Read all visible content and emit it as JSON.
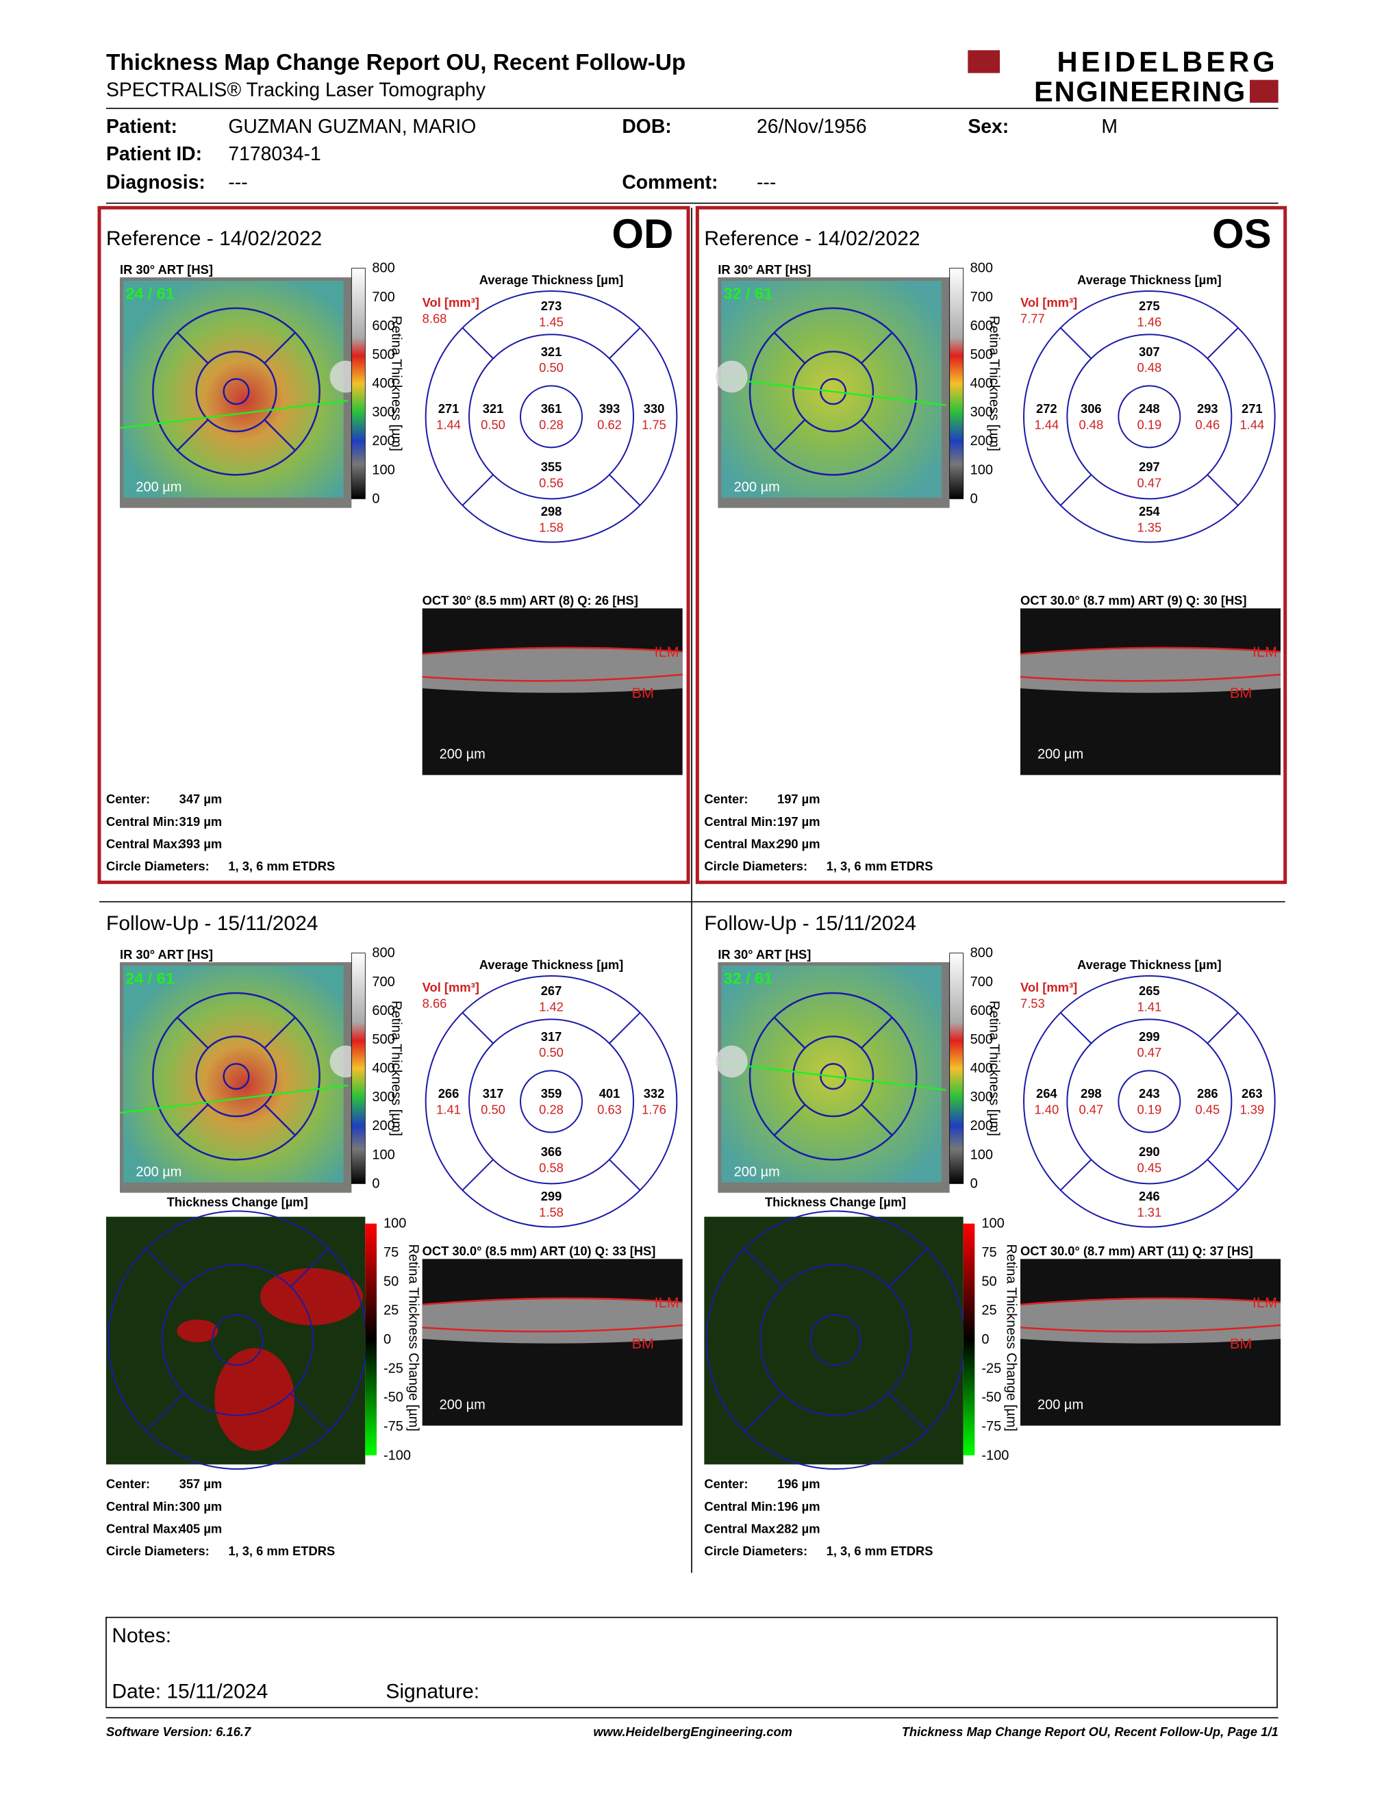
{
  "header": {
    "title": "Thickness Map Change Report OU, Recent Follow-Up",
    "subtitle": "SPECTRALIS® Tracking Laser Tomography",
    "logo": [
      "HEIDELBERG",
      "ENGINEERING"
    ]
  },
  "patient": {
    "patient_label": "Patient:",
    "patient": "GUZMAN GUZMAN, MARIO",
    "dob_label": "DOB:",
    "dob": "26/Nov/1956",
    "sex_label": "Sex:",
    "sex": "M",
    "id_label": "Patient ID:",
    "id": "7178034-1",
    "diagnosis_label": "Diagnosis:",
    "diagnosis": "---",
    "comment_label": "Comment:",
    "comment": "---"
  },
  "panels": [
    {
      "heading": "Reference - 14/02/2022",
      "eye": "OD",
      "ir_label": "IR 30° ART [HS]",
      "overlay": "24 / 61",
      "scale": "200 µm",
      "colorbar": {
        "ticks": [
          "800",
          "700",
          "600",
          "500",
          "400",
          "300",
          "200",
          "100",
          "0"
        ],
        "label": "Retina Thickness [µm]"
      },
      "etdrs": {
        "title": "Average Thickness [µm]",
        "vol_label": "Vol [mm³]",
        "vol": "8.68",
        "sectors": [
          {
            "thickness": "273",
            "volume": "1.45"
          },
          {
            "thickness": "321",
            "volume": "0.50"
          },
          {
            "thickness": "271",
            "volume": "1.44"
          },
          {
            "thickness": "321",
            "volume": "0.50"
          },
          {
            "thickness": "361",
            "volume": "0.28"
          },
          {
            "thickness": "393",
            "volume": "0.62"
          },
          {
            "thickness": "330",
            "volume": "1.75"
          },
          {
            "thickness": "355",
            "volume": "0.56"
          },
          {
            "thickness": "298",
            "volume": "1.58"
          }
        ]
      },
      "oct": {
        "label": "OCT 30° (8.5 mm) ART (8) Q: 26 [HS]",
        "ilm": "ILM",
        "bm": "BM",
        "scale": "200 µm"
      },
      "stats": [
        {
          "label": "Center:",
          "value": "347 µm"
        },
        {
          "label": "Central Min:",
          "value": "319 µm"
        },
        {
          "label": "Central Max:",
          "value": "393 µm"
        },
        {
          "label": "Circle Diameters:",
          "value": "1, 3, 6 mm ETDRS"
        }
      ]
    },
    {
      "heading": "Reference - 14/02/2022",
      "eye": "OS",
      "ir_label": "IR 30° ART [HS]",
      "overlay": "32 / 61",
      "scale": "200 µm",
      "colorbar": {
        "ticks": [
          "800",
          "700",
          "600",
          "500",
          "400",
          "300",
          "200",
          "100",
          "0"
        ],
        "label": "Retina Thickness [µm]"
      },
      "etdrs": {
        "title": "Average Thickness [µm]",
        "vol_label": "Vol [mm³]",
        "vol": "7.77",
        "sectors": [
          {
            "thickness": "275",
            "volume": "1.46"
          },
          {
            "thickness": "307",
            "volume": "0.48"
          },
          {
            "thickness": "272",
            "volume": "1.44"
          },
          {
            "thickness": "306",
            "volume": "0.48"
          },
          {
            "thickness": "248",
            "volume": "0.19"
          },
          {
            "thickness": "293",
            "volume": "0.46"
          },
          {
            "thickness": "271",
            "volume": "1.44"
          },
          {
            "thickness": "297",
            "volume": "0.47"
          },
          {
            "thickness": "254",
            "volume": "1.35"
          }
        ]
      },
      "oct": {
        "label": "OCT 30.0° (8.7 mm) ART (9) Q: 30 [HS]",
        "ilm": "ILM",
        "bm": "BM",
        "scale": "200 µm"
      },
      "stats": [
        {
          "label": "Center:",
          "value": "197 µm"
        },
        {
          "label": "Central Min:",
          "value": "197 µm"
        },
        {
          "label": "Central Max:",
          "value": "290 µm"
        },
        {
          "label": "Circle Diameters:",
          "value": "1, 3, 6 mm ETDRS"
        }
      ]
    },
    {
      "heading": "Follow-Up - 15/11/2024",
      "ir_label": "IR 30° ART [HS]",
      "overlay": "24 / 61",
      "scale": "200 µm",
      "colorbar": {
        "ticks": [
          "800",
          "700",
          "600",
          "500",
          "400",
          "300",
          "200",
          "100",
          "0"
        ],
        "label": "Retina Thickness [µm]"
      },
      "etdrs": {
        "title": "Average Thickness [µm]",
        "vol_label": "Vol [mm³]",
        "vol": "8.66",
        "sectors": [
          {
            "thickness": "267",
            "volume": "1.42"
          },
          {
            "thickness": "317",
            "volume": "0.50"
          },
          {
            "thickness": "266",
            "volume": "1.41"
          },
          {
            "thickness": "317",
            "volume": "0.50"
          },
          {
            "thickness": "359",
            "volume": "0.28"
          },
          {
            "thickness": "401",
            "volume": "0.63"
          },
          {
            "thickness": "332",
            "volume": "1.76"
          },
          {
            "thickness": "366",
            "volume": "0.58"
          },
          {
            "thickness": "299",
            "volume": "1.58"
          }
        ]
      },
      "change": {
        "title": "Thickness Change [µm]",
        "ticks": [
          "100",
          "75",
          "50",
          "25",
          "0",
          "-25",
          "-50",
          "-75",
          "-100"
        ],
        "label": "Retina Thickness Change [µm]"
      },
      "oct": {
        "label": "OCT 30.0° (8.5 mm) ART (10) Q: 33 [HS]",
        "ilm": "ILM",
        "bm": "BM",
        "scale": "200 µm"
      },
      "stats": [
        {
          "label": "Center:",
          "value": "357 µm"
        },
        {
          "label": "Central Min:",
          "value": "300 µm"
        },
        {
          "label": "Central Max:",
          "value": "405 µm"
        },
        {
          "label": "Circle Diameters:",
          "value": "1, 3, 6 mm ETDRS"
        }
      ]
    },
    {
      "heading": "Follow-Up - 15/11/2024",
      "ir_label": "IR 30° ART [HS]",
      "overlay": "32 / 61",
      "scale": "200 µm",
      "colorbar": {
        "ticks": [
          "800",
          "700",
          "600",
          "500",
          "400",
          "300",
          "200",
          "100",
          "0"
        ],
        "label": "Retina Thickness [µm]"
      },
      "etdrs": {
        "title": "Average Thickness [µm]",
        "vol_label": "Vol [mm³]",
        "vol": "7.53",
        "sectors": [
          {
            "thickness": "265",
            "volume": "1.41"
          },
          {
            "thickness": "299",
            "volume": "0.47"
          },
          {
            "thickness": "264",
            "volume": "1.40"
          },
          {
            "thickness": "298",
            "volume": "0.47"
          },
          {
            "thickness": "243",
            "volume": "0.19"
          },
          {
            "thickness": "286",
            "volume": "0.45"
          },
          {
            "thickness": "263",
            "volume": "1.39"
          },
          {
            "thickness": "290",
            "volume": "0.45"
          },
          {
            "thickness": "246",
            "volume": "1.31"
          }
        ]
      },
      "change": {
        "title": "Thickness Change [µm]",
        "ticks": [
          "100",
          "75",
          "50",
          "25",
          "0",
          "-25",
          "-50",
          "-75",
          "-100"
        ],
        "label": "Retina Thickness Change [µm]"
      },
      "oct": {
        "label": "OCT 30.0° (8.7 mm) ART (11) Q: 37 [HS]",
        "ilm": "ILM",
        "bm": "BM",
        "scale": "200 µm"
      },
      "stats": [
        {
          "label": "Center:",
          "value": "196 µm"
        },
        {
          "label": "Central Min:",
          "value": "196 µm"
        },
        {
          "label": "Central Max:",
          "value": "282 µm"
        },
        {
          "label": "Circle Diameters:",
          "value": "1, 3, 6 mm ETDRS"
        }
      ]
    }
  ],
  "notes": {
    "label": "Notes:",
    "date": "Date: 15/11/2024",
    "signature": "Signature:"
  },
  "footer": {
    "software": "Software Version: 6.16.7",
    "url": "www.HeidelbergEngineering.com",
    "page": "Thickness Map Change Report OU, Recent Follow-Up, Page 1/1"
  }
}
